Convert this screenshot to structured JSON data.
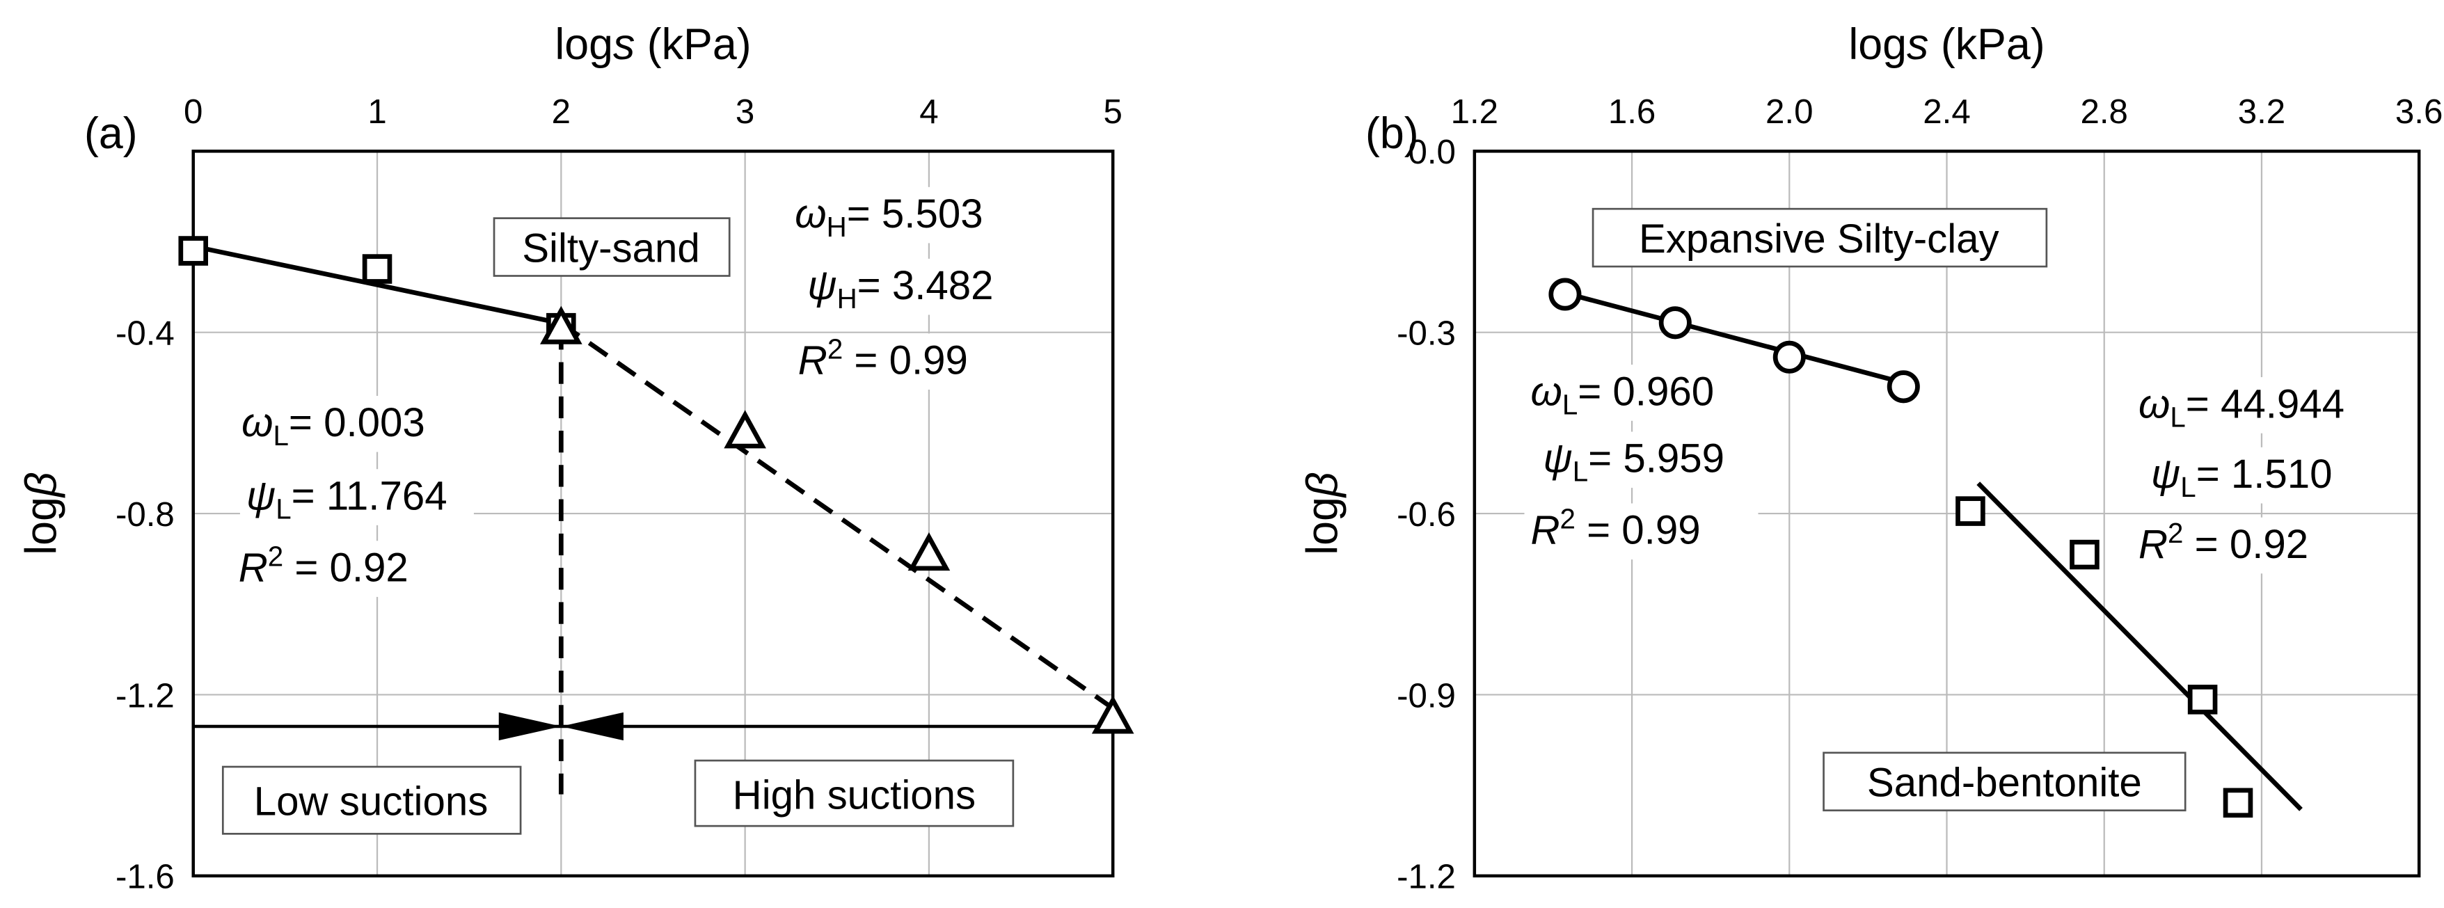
{
  "chart_data": [
    {
      "type": "scatter",
      "panel_label": "(a)",
      "xlabel": [
        "log",
        "s",
        " (kPa)"
      ],
      "ylabel": [
        "log",
        "β"
      ],
      "xlim": [
        0,
        5
      ],
      "xticks": [
        0,
        1,
        2,
        3,
        4,
        5
      ],
      "ylim": [
        -1.6,
        0
      ],
      "yticks": [
        -0.4,
        -0.8,
        -1.2,
        -1.6
      ],
      "grid": true,
      "series": [
        {
          "marker": "square",
          "color": "#000000",
          "x": [
            0,
            1,
            2
          ],
          "values": [
            -0.22,
            -0.26,
            -0.39
          ]
        },
        {
          "marker": "triangle",
          "color": "#000000",
          "x": [
            2,
            3,
            4,
            5
          ],
          "values": [
            -0.39,
            -0.62,
            -0.89,
            -1.25
          ]
        },
        {
          "line": "solid",
          "color": "#000000",
          "x": [
            0,
            2
          ],
          "values": [
            -0.21,
            -0.38
          ]
        },
        {
          "line": "dashed",
          "color": "#000000",
          "x": [
            2,
            5
          ],
          "values": [
            -0.38,
            -1.23
          ]
        }
      ],
      "divider": {
        "x": 2,
        "y": [
          -0.39,
          -1.42
        ],
        "arrow_y": -1.27
      },
      "annotations": [
        {
          "box": true,
          "parts": [
            {
              "t": "Silty-sand"
            }
          ]
        },
        {
          "box": true,
          "parts": [
            {
              "t": "Low suctions"
            }
          ]
        },
        {
          "box": true,
          "parts": [
            {
              "t": "High suctions"
            }
          ]
        },
        {
          "parts": [
            {
              "t": "ω",
              "style": "italic"
            },
            {
              "t": "H",
              "style": "sub"
            },
            {
              "t": "= 5.503"
            }
          ]
        },
        {
          "parts": [
            {
              "t": "ψ",
              "style": "italic"
            },
            {
              "t": "H",
              "style": "sub"
            },
            {
              "t": "= 3.482"
            }
          ]
        },
        {
          "parts": [
            {
              "t": "R",
              "style": "italic"
            },
            {
              "t": "2",
              "style": "sup"
            },
            {
              "t": " = 0.99"
            }
          ]
        },
        {
          "parts": [
            {
              "t": "ω",
              "style": "italic"
            },
            {
              "t": "L",
              "style": "sub"
            },
            {
              "t": "= 0.003"
            }
          ]
        },
        {
          "parts": [
            {
              "t": "ψ",
              "style": "italic"
            },
            {
              "t": "L",
              "style": "sub"
            },
            {
              "t": "= 11.764"
            }
          ]
        },
        {
          "parts": [
            {
              "t": "R",
              "style": "italic"
            },
            {
              "t": "2",
              "style": "sup"
            },
            {
              "t": " = 0.92"
            }
          ]
        }
      ]
    },
    {
      "type": "scatter",
      "panel_label": "(b)",
      "xlabel": [
        "log",
        "s",
        " (kPa)"
      ],
      "ylabel": [
        "log",
        "β"
      ],
      "xlim": [
        1.2,
        3.6
      ],
      "xticks": [
        1.2,
        1.6,
        {
          "value": 2,
          "label": "2.0"
        },
        2.4,
        2.8,
        3.2,
        3.6
      ],
      "ylim": [
        -1.2,
        0
      ],
      "yticks": [
        {
          "value": 0,
          "label": "0.0"
        },
        -0.3,
        -0.6,
        -0.9,
        -1.2
      ],
      "grid": true,
      "series": [
        {
          "marker": "circle",
          "color": "#000000",
          "x": [
            1.43,
            1.71,
            2.0,
            2.29
          ],
          "values": [
            -0.237,
            -0.284,
            -0.341,
            -0.39
          ]
        },
        {
          "marker": "square",
          "color": "#000000",
          "x": [
            2.46,
            2.75,
            3.05,
            3.14
          ],
          "values": [
            -0.596,
            -0.668,
            -0.908,
            -1.079
          ]
        },
        {
          "line": "solid",
          "color": "#000000",
          "x": [
            1.43,
            2.3
          ],
          "values": [
            -0.235,
            -0.385
          ]
        },
        {
          "line": "solid",
          "color": "#000000",
          "x": [
            2.48,
            3.3
          ],
          "values": [
            -0.55,
            -1.09
          ]
        }
      ],
      "annotations": [
        {
          "box": true,
          "parts": [
            {
              "t": "Expansive Silty-clay"
            }
          ]
        },
        {
          "box": true,
          "parts": [
            {
              "t": "Sand-bentonite"
            }
          ]
        },
        {
          "parts": [
            {
              "t": "ω",
              "style": "italic"
            },
            {
              "t": "L",
              "style": "sub"
            },
            {
              "t": "= 0.960"
            }
          ]
        },
        {
          "parts": [
            {
              "t": "ψ",
              "style": "italic"
            },
            {
              "t": "L",
              "style": "sub"
            },
            {
              "t": "= 5.959"
            }
          ]
        },
        {
          "parts": [
            {
              "t": "R",
              "style": "italic"
            },
            {
              "t": "2",
              "style": "sup"
            },
            {
              "t": " = 0.99"
            }
          ]
        },
        {
          "parts": [
            {
              "t": "ω",
              "style": "italic"
            },
            {
              "t": "L",
              "style": "sub"
            },
            {
              "t": "= 44.944"
            }
          ]
        },
        {
          "parts": [
            {
              "t": "ψ",
              "style": "italic"
            },
            {
              "t": "L",
              "style": "sub"
            },
            {
              "t": "= 1.510"
            }
          ]
        },
        {
          "parts": [
            {
              "t": "R",
              "style": "italic"
            },
            {
              "t": "2",
              "style": "sup"
            },
            {
              "t": " = 0.92"
            }
          ]
        }
      ]
    }
  ]
}
